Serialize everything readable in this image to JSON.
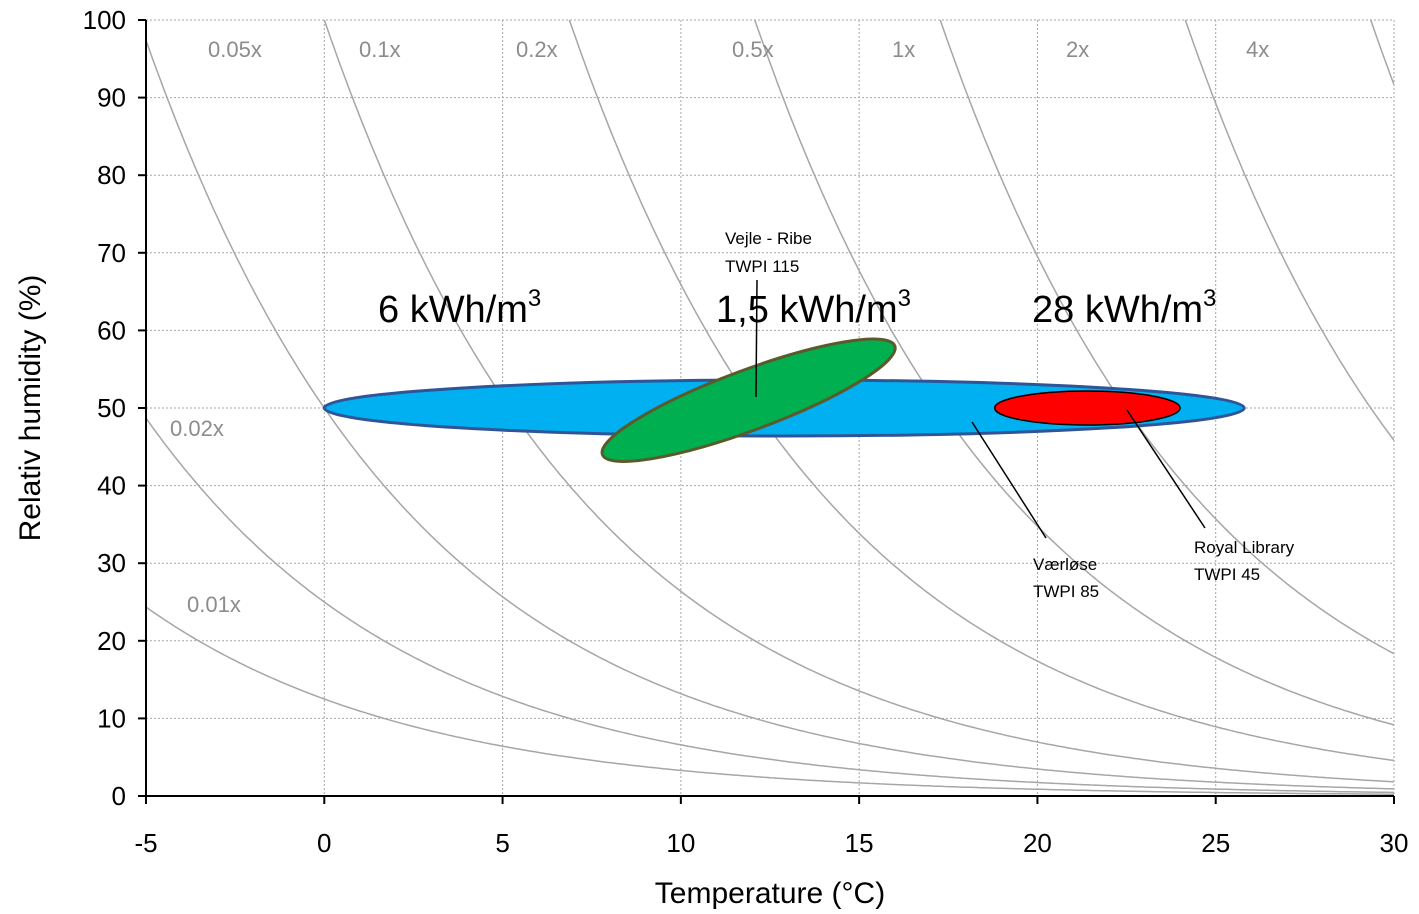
{
  "chart_data": {
    "type": "line",
    "xlabel": "Temperature (°C)",
    "ylabel": "Relativ humidity (%)",
    "xlim": [
      -5,
      30
    ],
    "ylim": [
      0,
      100
    ],
    "x_ticks": [
      -5,
      0,
      5,
      10,
      15,
      20,
      25,
      30
    ],
    "y_ticks": [
      0,
      10,
      20,
      30,
      40,
      50,
      60,
      70,
      80,
      90,
      100
    ],
    "grid": true,
    "reference": {
      "t": 0,
      "rh": 50
    },
    "iso_curves": [
      {
        "label": "0.01x",
        "factor": 0.01
      },
      {
        "label": "0.02x",
        "factor": 0.02
      },
      {
        "label": "0.05x",
        "factor": 0.05
      },
      {
        "label": "0.1x",
        "factor": 0.1
      },
      {
        "label": "0.2x",
        "factor": 0.2
      },
      {
        "label": "0.5x",
        "factor": 0.5
      },
      {
        "label": "1x",
        "factor": 1
      },
      {
        "label": "2x",
        "factor": 2
      },
      {
        "label": "4x",
        "factor": 4
      }
    ],
    "regions": [
      {
        "name": "Værløse",
        "sublabel": "TWPI 85",
        "energy": "28 kWh/m",
        "t_range": [
          0,
          25.8
        ],
        "rh": 50,
        "color": "#00b0f0"
      },
      {
        "name": "Vejle - Ribe",
        "sublabel": "TWPI 115",
        "energy": "1,5 kWh/m",
        "t_range": [
          7.8,
          16
        ],
        "rh_range": [
          44,
          58
        ],
        "color": "#00b050"
      },
      {
        "name": "Royal Library",
        "sublabel": "TWPI 45",
        "t_range": [
          18.8,
          24
        ],
        "rh": 50,
        "color": "#ff0000"
      }
    ],
    "annotations": [
      {
        "text": "6 kWh/m",
        "sup": "3"
      },
      {
        "text": "1,5 kWh/m",
        "sup": "3"
      },
      {
        "text": "28 kWh/m",
        "sup": "3"
      }
    ]
  }
}
